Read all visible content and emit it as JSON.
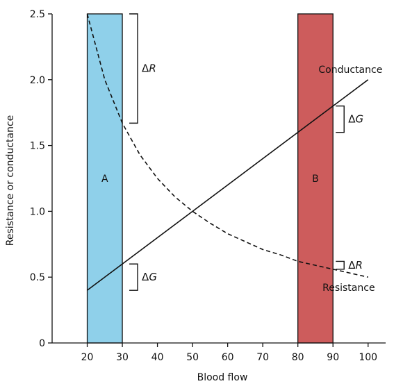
{
  "chart_data": {
    "type": "line",
    "title": "",
    "xlabel": "Blood flow",
    "ylabel": "Resistance or conductance",
    "xlim": [
      10,
      105
    ],
    "ylim": [
      0,
      2.5
    ],
    "x_ticks": [
      20,
      30,
      40,
      50,
      60,
      70,
      80,
      90,
      100
    ],
    "y_ticks": [
      0,
      0.5,
      1.0,
      1.5,
      2.0,
      2.5
    ],
    "y_tick_labels": [
      "0",
      "0.5",
      "1.0",
      "1.5",
      "2.0",
      "2.5"
    ],
    "grid": false,
    "series": [
      {
        "name": "Conductance",
        "style": "solid",
        "color": "#111111",
        "x": [
          20,
          100
        ],
        "y": [
          0.4,
          2.0
        ]
      },
      {
        "name": "Resistance",
        "style": "dashed",
        "color": "#111111",
        "x": [
          20,
          25,
          30,
          35,
          40,
          45,
          50,
          55,
          60,
          65,
          70,
          75,
          80,
          85,
          90,
          95,
          100
        ],
        "y": [
          2.5,
          2.0,
          1.67,
          1.43,
          1.25,
          1.11,
          1.0,
          0.91,
          0.83,
          0.77,
          0.71,
          0.67,
          0.62,
          0.59,
          0.56,
          0.53,
          0.5
        ]
      }
    ],
    "bands": [
      {
        "label": "A",
        "x_range": [
          20,
          30
        ],
        "color": "#8fd0ea"
      },
      {
        "label": "B",
        "x_range": [
          80,
          90
        ],
        "color": "#cd5c5c"
      }
    ],
    "annotations": [
      {
        "label_prefix": "Δ",
        "label_var": "R",
        "x": 30,
        "y_range": [
          1.67,
          2.5
        ],
        "side": "right"
      },
      {
        "label_prefix": "Δ",
        "label_var": "G",
        "x": 30,
        "y_range": [
          0.4,
          0.6
        ],
        "side": "right"
      },
      {
        "label_prefix": "Δ",
        "label_var": "G",
        "x": 90,
        "y_range": [
          1.6,
          1.8
        ],
        "side": "right"
      },
      {
        "label_prefix": "Δ",
        "label_var": "R",
        "x": 90,
        "y_range": [
          0.56,
          0.62
        ],
        "side": "right"
      }
    ],
    "line_labels": [
      {
        "text": "Conductance",
        "series": "Conductance"
      },
      {
        "text": "Resistance",
        "series": "Resistance"
      }
    ]
  }
}
